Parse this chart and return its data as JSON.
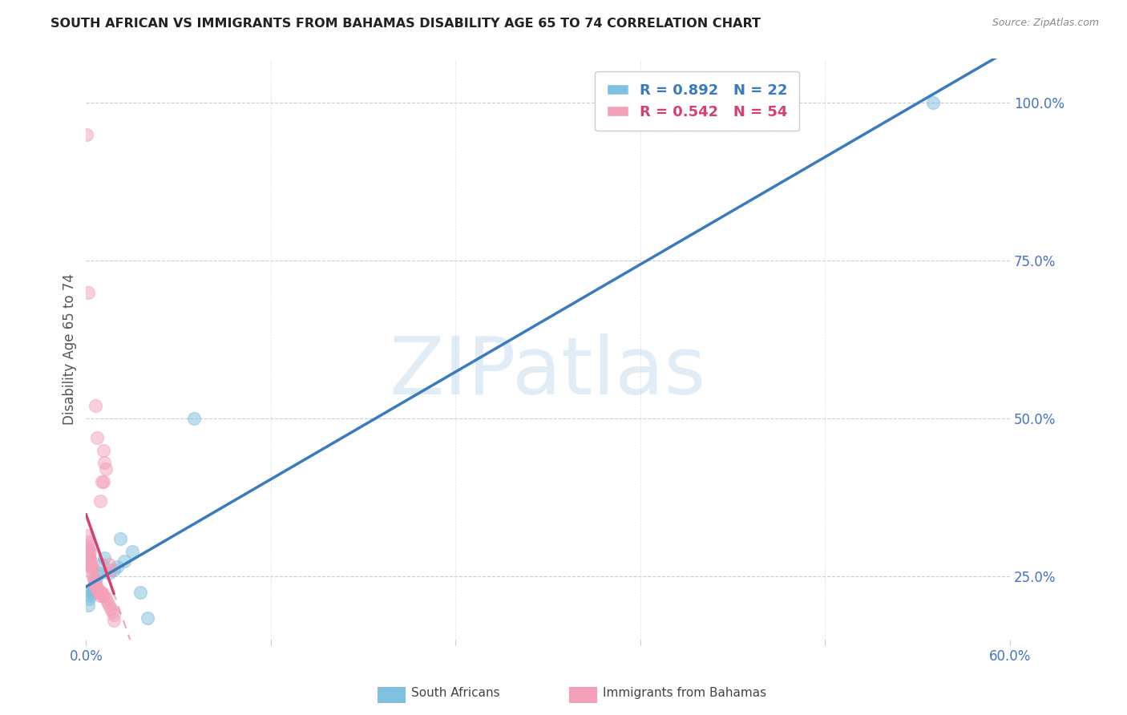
{
  "title": "SOUTH AFRICAN VS IMMIGRANTS FROM BAHAMAS DISABILITY AGE 65 TO 74 CORRELATION CHART",
  "source": "Source: ZipAtlas.com",
  "ylabel": "Disability Age 65 to 74",
  "xlim": [
    0.0,
    60.0
  ],
  "ylim": [
    15.0,
    107.0
  ],
  "xticks": [
    0.0,
    12.0,
    24.0,
    36.0,
    48.0,
    60.0
  ],
  "xtick_labels": [
    "0.0%",
    "",
    "",
    "",
    "",
    "60.0%"
  ],
  "ytick_labels_right": [
    "25.0%",
    "50.0%",
    "75.0%",
    "100.0%"
  ],
  "ytick_vals_right": [
    25.0,
    50.0,
    75.0,
    100.0
  ],
  "blue_color": "#7fbfdf",
  "pink_color": "#f4a0b8",
  "blue_line_color": "#3a7abf",
  "pink_line_color": "#d64070",
  "watermark_text": "ZIPatlas",
  "background_color": "#ffffff",
  "blue_x": [
    0.2,
    0.3,
    0.5,
    0.6,
    0.7,
    0.8,
    1.0,
    1.2,
    1.5,
    2.0,
    2.5,
    3.0,
    0.15,
    0.25,
    0.35,
    0.45,
    1.8,
    2.2,
    3.5,
    4.0,
    7.0,
    55.0
  ],
  "blue_y": [
    21.5,
    22.5,
    23.0,
    24.0,
    25.0,
    25.5,
    27.0,
    28.0,
    25.5,
    26.5,
    27.5,
    29.0,
    20.5,
    22.0,
    23.0,
    22.5,
    26.0,
    31.0,
    22.5,
    18.5,
    50.0,
    100.0
  ],
  "pink_x": [
    0.05,
    0.08,
    0.1,
    0.12,
    0.15,
    0.15,
    0.18,
    0.2,
    0.22,
    0.25,
    0.28,
    0.3,
    0.32,
    0.35,
    0.4,
    0.45,
    0.5,
    0.55,
    0.6,
    0.65,
    0.7,
    0.75,
    0.8,
    0.85,
    0.9,
    0.9,
    0.95,
    1.0,
    1.0,
    1.05,
    1.1,
    1.2,
    1.2,
    1.3,
    1.4,
    1.5,
    1.6,
    1.7,
    1.8,
    0.1,
    0.12,
    0.15,
    0.18,
    0.2,
    0.22,
    0.25,
    0.3,
    0.6,
    0.7,
    1.1,
    1.3,
    1.5,
    1.6,
    1.8
  ],
  "pink_y": [
    95.0,
    30.0,
    29.5,
    29.0,
    28.5,
    70.0,
    28.0,
    28.5,
    28.0,
    27.5,
    27.0,
    27.0,
    26.5,
    26.5,
    25.5,
    25.0,
    24.5,
    24.0,
    23.5,
    23.5,
    23.0,
    23.0,
    22.5,
    22.5,
    22.0,
    37.0,
    22.5,
    22.5,
    40.0,
    22.0,
    40.0,
    22.0,
    43.0,
    21.5,
    21.0,
    20.5,
    20.0,
    19.5,
    19.0,
    31.5,
    30.5,
    29.5,
    28.5,
    28.0,
    29.0,
    27.5,
    26.5,
    52.0,
    47.0,
    45.0,
    42.0,
    27.0,
    26.0,
    18.0
  ]
}
